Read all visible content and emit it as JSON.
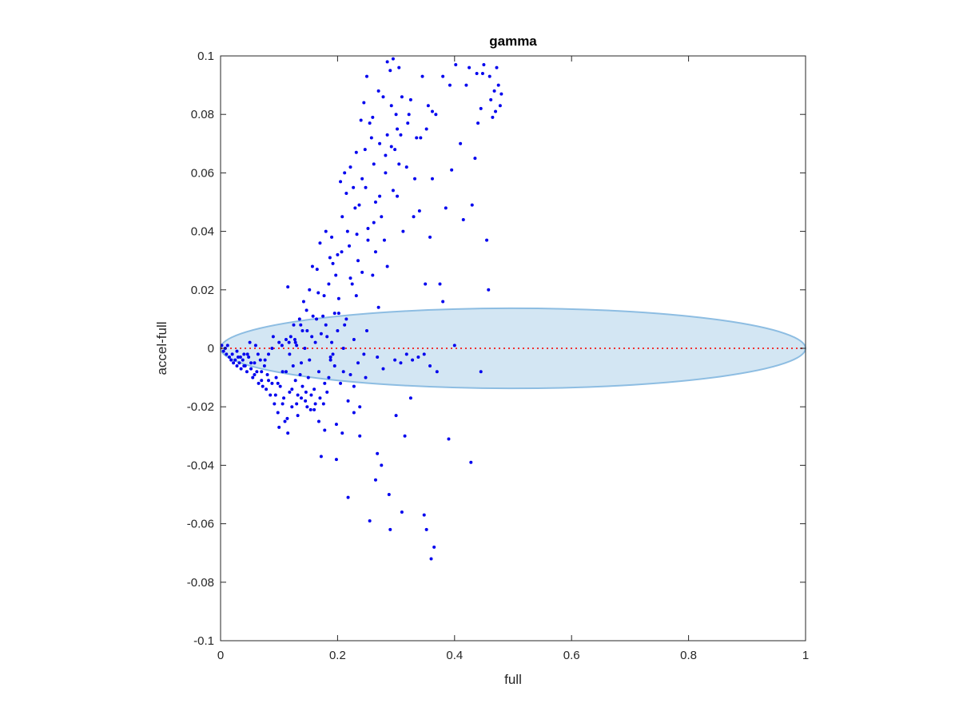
{
  "chart_data": {
    "type": "scatter",
    "title": "gamma",
    "xlabel": "full",
    "ylabel": "accel-full",
    "xlim": [
      0,
      1
    ],
    "ylim": [
      -0.1,
      0.1
    ],
    "xticks": [
      "0",
      "0.2",
      "0.4",
      "0.6",
      "0.8",
      "1"
    ],
    "xtick_values": [
      0,
      0.2,
      0.4,
      0.6,
      0.8,
      1
    ],
    "yticks": [
      "0.1",
      "0.08",
      "0.06",
      "0.04",
      "0.02",
      "0",
      "-0.02",
      "-0.04",
      "-0.06",
      "-0.08",
      "-0.1"
    ],
    "ytick_values": [
      0.1,
      0.08,
      0.06,
      0.04,
      0.02,
      0,
      -0.02,
      -0.04,
      -0.06,
      -0.08,
      -0.1
    ],
    "grid": false,
    "colors": {
      "points": "#0000ee",
      "reference_line": "#ee3333",
      "ellipse_fill": "#d3e6f3",
      "ellipse_stroke": "#8dbde2"
    },
    "reference_line": {
      "y": 0,
      "style": "dotted"
    },
    "ellipse": {
      "center_x": 0.5,
      "center_y": 0,
      "semi_x": 0.5,
      "semi_y": 0.0137
    },
    "points": [
      [
        0.002,
        0.001
      ],
      [
        0.005,
        -0.001
      ],
      [
        0.008,
        0.0
      ],
      [
        0.01,
        -0.002
      ],
      [
        0.012,
        0.001
      ],
      [
        0.015,
        -0.003
      ],
      [
        0.018,
        -0.004
      ],
      [
        0.02,
        -0.002
      ],
      [
        0.022,
        -0.005
      ],
      [
        0.025,
        -0.004
      ],
      [
        0.028,
        -0.006
      ],
      [
        0.03,
        -0.003
      ],
      [
        0.032,
        -0.005
      ],
      [
        0.035,
        -0.007
      ],
      [
        0.038,
        -0.004
      ],
      [
        0.04,
        -0.002
      ],
      [
        0.042,
        -0.006
      ],
      [
        0.045,
        -0.008
      ],
      [
        0.048,
        -0.003
      ],
      [
        0.05,
        0.002
      ],
      [
        0.052,
        -0.007
      ],
      [
        0.055,
        -0.01
      ],
      [
        0.058,
        -0.005
      ],
      [
        0.06,
        0.001
      ],
      [
        0.062,
        -0.008
      ],
      [
        0.065,
        -0.012
      ],
      [
        0.068,
        -0.004
      ],
      [
        0.07,
        -0.011
      ],
      [
        0.072,
        -0.013
      ],
      [
        0.075,
        -0.006
      ],
      [
        0.078,
        -0.014
      ],
      [
        0.08,
        -0.009
      ],
      [
        0.082,
        -0.002
      ],
      [
        0.085,
        -0.016
      ],
      [
        0.088,
        -0.012
      ],
      [
        0.09,
        0.004
      ],
      [
        0.092,
        -0.019
      ],
      [
        0.095,
        -0.01
      ],
      [
        0.098,
        -0.022
      ],
      [
        0.1,
        -0.027
      ],
      [
        0.102,
        -0.013
      ],
      [
        0.105,
        0.001
      ],
      [
        0.108,
        -0.017
      ],
      [
        0.11,
        -0.025
      ],
      [
        0.112,
        -0.008
      ],
      [
        0.115,
        -0.029
      ],
      [
        0.115,
        0.021
      ],
      [
        0.118,
        -0.015
      ],
      [
        0.12,
        0.004
      ],
      [
        0.122,
        -0.02
      ],
      [
        0.125,
        0.008
      ],
      [
        0.128,
        -0.011
      ],
      [
        0.13,
        0.001
      ],
      [
        0.132,
        -0.023
      ],
      [
        0.135,
        0.01
      ],
      [
        0.138,
        -0.005
      ],
      [
        0.14,
        -0.013
      ],
      [
        0.142,
        0.016
      ],
      [
        0.145,
        -0.018
      ],
      [
        0.148,
        0.006
      ],
      [
        0.15,
        -0.01
      ],
      [
        0.152,
        0.02
      ],
      [
        0.155,
        -0.016
      ],
      [
        0.158,
        0.011
      ],
      [
        0.16,
        -0.021
      ],
      [
        0.162,
        0.002
      ],
      [
        0.165,
        0.027
      ],
      [
        0.168,
        -0.025
      ],
      [
        0.17,
        0.036
      ],
      [
        0.172,
        -0.037
      ],
      [
        0.175,
        0.011
      ],
      [
        0.178,
        -0.028
      ],
      [
        0.18,
        0.04
      ],
      [
        0.182,
        -0.015
      ],
      [
        0.185,
        0.022
      ],
      [
        0.188,
        -0.003
      ],
      [
        0.19,
        0.038
      ],
      [
        0.192,
        0.029
      ],
      [
        0.195,
        0.012
      ],
      [
        0.198,
        -0.038
      ],
      [
        0.2,
        0.032
      ],
      [
        0.202,
        0.017
      ],
      [
        0.205,
        0.057
      ],
      [
        0.208,
        0.045
      ],
      [
        0.21,
        -0.008
      ],
      [
        0.212,
        0.06
      ],
      [
        0.215,
        0.053
      ],
      [
        0.218,
        -0.051
      ],
      [
        0.22,
        0.035
      ],
      [
        0.222,
        0.062
      ],
      [
        0.225,
        0.022
      ],
      [
        0.228,
        -0.013
      ],
      [
        0.23,
        0.048
      ],
      [
        0.232,
        0.067
      ],
      [
        0.235,
        0.03
      ],
      [
        0.238,
        -0.03
      ],
      [
        0.24,
        0.078
      ],
      [
        0.242,
        0.058
      ],
      [
        0.245,
        0.084
      ],
      [
        0.248,
        0.055
      ],
      [
        0.25,
        0.093
      ],
      [
        0.252,
        0.041
      ],
      [
        0.255,
        -0.059
      ],
      [
        0.258,
        0.072
      ],
      [
        0.26,
        0.079
      ],
      [
        0.262,
        0.063
      ],
      [
        0.265,
        0.05
      ],
      [
        0.268,
        -0.036
      ],
      [
        0.27,
        0.088
      ],
      [
        0.272,
        0.07
      ],
      [
        0.275,
        0.045
      ],
      [
        0.278,
        0.086
      ],
      [
        0.28,
        0.037
      ],
      [
        0.282,
        0.06
      ],
      [
        0.285,
        0.073
      ],
      [
        0.288,
        -0.05
      ],
      [
        0.29,
        0.095
      ],
      [
        0.292,
        0.083
      ],
      [
        0.295,
        0.099
      ],
      [
        0.298,
        0.068
      ],
      [
        0.3,
        0.08
      ],
      [
        0.302,
        0.052
      ],
      [
        0.305,
        0.096
      ],
      [
        0.308,
        0.073
      ],
      [
        0.31,
        -0.056
      ],
      [
        0.312,
        0.04
      ],
      [
        0.315,
        -0.03
      ],
      [
        0.318,
        0.062
      ],
      [
        0.32,
        0.077
      ],
      [
        0.325,
        0.085
      ],
      [
        0.33,
        0.045
      ],
      [
        0.335,
        0.072
      ],
      [
        0.34,
        0.047
      ],
      [
        0.345,
        0.093
      ],
      [
        0.348,
        -0.057
      ],
      [
        0.35,
        0.022
      ],
      [
        0.352,
        -0.062
      ],
      [
        0.355,
        0.083
      ],
      [
        0.358,
        0.038
      ],
      [
        0.36,
        -0.072
      ],
      [
        0.362,
        0.058
      ],
      [
        0.365,
        -0.068
      ],
      [
        0.368,
        0.08
      ],
      [
        0.37,
        -0.008
      ],
      [
        0.375,
        0.022
      ],
      [
        0.38,
        0.016
      ],
      [
        0.385,
        0.048
      ],
      [
        0.39,
        -0.031
      ],
      [
        0.395,
        0.061
      ],
      [
        0.4,
        0.001
      ],
      [
        0.41,
        0.07
      ],
      [
        0.415,
        0.044
      ],
      [
        0.42,
        0.09
      ],
      [
        0.425,
        0.096
      ],
      [
        0.428,
        -0.039
      ],
      [
        0.43,
        0.049
      ],
      [
        0.435,
        0.065
      ],
      [
        0.44,
        0.077
      ],
      [
        0.445,
        -0.008
      ],
      [
        0.448,
        0.094
      ],
      [
        0.45,
        0.097
      ],
      [
        0.455,
        0.037
      ],
      [
        0.458,
        0.02
      ],
      [
        0.46,
        0.093
      ],
      [
        0.462,
        0.085
      ],
      [
        0.465,
        0.079
      ],
      [
        0.468,
        0.088
      ],
      [
        0.47,
        0.081
      ],
      [
        0.472,
        0.096
      ],
      [
        0.475,
        0.09
      ],
      [
        0.478,
        0.083
      ],
      [
        0.48,
        0.087
      ],
      [
        0.445,
        0.082
      ],
      [
        0.438,
        0.094
      ],
      [
        0.325,
        -0.017
      ],
      [
        0.3,
        -0.023
      ],
      [
        0.29,
        -0.062
      ],
      [
        0.275,
        -0.04
      ],
      [
        0.265,
        -0.045
      ],
      [
        0.25,
        0.006
      ],
      [
        0.245,
        -0.002
      ],
      [
        0.235,
        -0.005
      ],
      [
        0.228,
        0.003
      ],
      [
        0.222,
        -0.009
      ],
      [
        0.215,
        0.01
      ],
      [
        0.21,
        0.0
      ],
      [
        0.205,
        -0.012
      ],
      [
        0.2,
        0.006
      ],
      [
        0.195,
        -0.006
      ],
      [
        0.19,
        0.002
      ],
      [
        0.185,
        -0.01
      ],
      [
        0.18,
        0.008
      ],
      [
        0.176,
        -0.019
      ],
      [
        0.172,
        0.005
      ],
      [
        0.168,
        -0.008
      ],
      [
        0.164,
        0.01
      ],
      [
        0.16,
        -0.014
      ],
      [
        0.156,
        0.004
      ],
      [
        0.152,
        -0.004
      ],
      [
        0.148,
        -0.02
      ],
      [
        0.144,
        0.0
      ],
      [
        0.14,
        0.006
      ],
      [
        0.136,
        -0.009
      ],
      [
        0.132,
        -0.016
      ],
      [
        0.128,
        0.002
      ],
      [
        0.124,
        -0.006
      ],
      [
        0.118,
        -0.002
      ],
      [
        0.112,
        0.003
      ],
      [
        0.106,
        -0.008
      ],
      [
        0.1,
        0.002
      ],
      [
        0.094,
        -0.016
      ],
      [
        0.088,
        0.0
      ],
      [
        0.082,
        -0.011
      ],
      [
        0.076,
        -0.004
      ],
      [
        0.07,
        -0.008
      ],
      [
        0.064,
        -0.002
      ],
      [
        0.058,
        -0.009
      ],
      [
        0.052,
        -0.005
      ],
      [
        0.046,
        -0.002
      ],
      [
        0.04,
        -0.006
      ],
      [
        0.034,
        -0.003
      ],
      [
        0.028,
        -0.001
      ],
      [
        0.26,
        0.025
      ],
      [
        0.265,
        0.033
      ],
      [
        0.27,
        0.014
      ],
      [
        0.285,
        0.028
      ],
      [
        0.295,
        0.054
      ],
      [
        0.305,
        0.063
      ],
      [
        0.31,
        0.086
      ],
      [
        0.285,
        0.098
      ],
      [
        0.255,
        0.077
      ],
      [
        0.247,
        0.068
      ],
      [
        0.237,
        0.049
      ],
      [
        0.233,
        0.039
      ],
      [
        0.227,
        0.055
      ],
      [
        0.217,
        0.04
      ],
      [
        0.207,
        0.033
      ],
      [
        0.197,
        0.025
      ],
      [
        0.187,
        0.031
      ],
      [
        0.177,
        0.018
      ],
      [
        0.167,
        0.019
      ],
      [
        0.157,
        0.028
      ],
      [
        0.147,
        0.013
      ],
      [
        0.137,
        0.008
      ],
      [
        0.127,
        0.003
      ],
      [
        0.117,
        0.002
      ],
      [
        0.182,
        0.004
      ],
      [
        0.192,
        -0.002
      ],
      [
        0.202,
        0.012
      ],
      [
        0.212,
        0.008
      ],
      [
        0.222,
        0.024
      ],
      [
        0.232,
        0.018
      ],
      [
        0.242,
        0.026
      ],
      [
        0.252,
        0.037
      ],
      [
        0.262,
        0.043
      ],
      [
        0.272,
        0.052
      ],
      [
        0.282,
        0.066
      ],
      [
        0.292,
        0.069
      ],
      [
        0.302,
        0.075
      ],
      [
        0.322,
        0.08
      ],
      [
        0.332,
        0.058
      ],
      [
        0.342,
        0.072
      ],
      [
        0.352,
        0.075
      ],
      [
        0.362,
        0.081
      ],
      [
        0.402,
        0.097
      ],
      [
        0.392,
        0.09
      ],
      [
        0.38,
        0.093
      ],
      [
        0.298,
        -0.004
      ],
      [
        0.308,
        -0.005
      ],
      [
        0.318,
        -0.002
      ],
      [
        0.328,
        -0.004
      ],
      [
        0.338,
        -0.003
      ],
      [
        0.348,
        -0.002
      ],
      [
        0.358,
        -0.006
      ],
      [
        0.268,
        -0.003
      ],
      [
        0.278,
        -0.007
      ],
      [
        0.248,
        -0.01
      ],
      [
        0.238,
        -0.02
      ],
      [
        0.228,
        -0.022
      ],
      [
        0.218,
        -0.018
      ],
      [
        0.208,
        -0.029
      ],
      [
        0.198,
        -0.026
      ],
      [
        0.188,
        -0.004
      ],
      [
        0.178,
        -0.012
      ],
      [
        0.17,
        -0.017
      ],
      [
        0.162,
        -0.019
      ],
      [
        0.154,
        -0.021
      ],
      [
        0.146,
        -0.015
      ],
      [
        0.138,
        -0.017
      ],
      [
        0.13,
        -0.019
      ],
      [
        0.122,
        -0.014
      ],
      [
        0.114,
        -0.024
      ],
      [
        0.106,
        -0.019
      ],
      [
        0.098,
        -0.012
      ]
    ]
  }
}
